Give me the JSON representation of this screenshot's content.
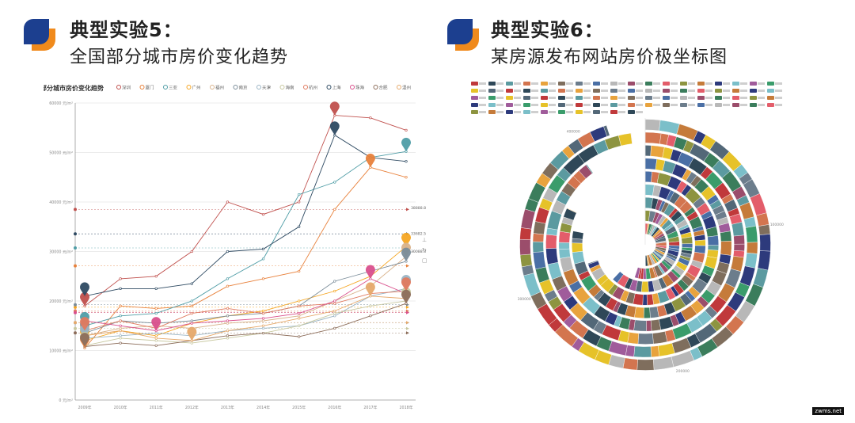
{
  "left": {
    "title": "典型实验5：",
    "subtitle": "全国部分城市房价变化趋势",
    "chart_title": "全国部分城市房价变化趋势"
  },
  "right": {
    "title": "典型实验6：",
    "subtitle": "某房源发布网站房价极坐标图"
  },
  "watermark": "zwms.net",
  "colors": {
    "logo_blue": "#1c3f8f",
    "logo_orange": "#f08a1c"
  },
  "chart_data": [
    {
      "type": "line",
      "title": "全国部分城市房价变化趋势",
      "categories": [
        "2009年",
        "2010年",
        "2011年",
        "2012年",
        "2013年",
        "2014年",
        "2015年",
        "2016年",
        "2017年",
        "2018年"
      ],
      "ylim": [
        0,
        60000
      ],
      "yticks": [
        "0 元/m²",
        "10000 元/m²",
        "20000 元/m²",
        "30000 元/m²",
        "40000 元/m²",
        "50000 元/m²",
        "60000 元/m²"
      ],
      "legend": [
        "深圳",
        "厦门",
        "三亚",
        "广州",
        "福州",
        "南京",
        "天津",
        "海南",
        "杭州",
        "上海",
        "珠海",
        "合肥",
        "温州"
      ],
      "series": [
        {
          "name": "深圳",
          "color": "#c0504d",
          "values": [
            19000,
            24500,
            25000,
            30000,
            40000,
            37500,
            40000,
            57500,
            57000,
            54500
          ]
        },
        {
          "name": "厦门",
          "color": "#e8813b",
          "values": [
            10500,
            19000,
            18500,
            19000,
            23000,
            24500,
            26000,
            38500,
            47000,
            45000
          ]
        },
        {
          "name": "三亚",
          "color": "#4f9da6",
          "values": [
            15000,
            17000,
            17500,
            20000,
            24500,
            28500,
            41500,
            44000,
            49000,
            50200
          ]
        },
        {
          "name": "广州",
          "color": "#f5a623",
          "values": [
            12000,
            14000,
            13000,
            15500,
            17000,
            18000,
            20000,
            22000,
            25000,
            31000
          ]
        },
        {
          "name": "福州",
          "color": "#d9b38c",
          "values": [
            13000,
            14500,
            15000,
            14500,
            15500,
            16000,
            17000,
            20000,
            23000,
            29000
          ]
        },
        {
          "name": "南京",
          "color": "#7a8c99",
          "values": [
            13500,
            16000,
            15500,
            16000,
            17000,
            17500,
            19000,
            24000,
            26000,
            28000
          ]
        },
        {
          "name": "天津",
          "color": "#9ab4c4",
          "values": [
            12500,
            13000,
            13500,
            13000,
            14000,
            14500,
            15000,
            17000,
            21000,
            22500
          ]
        },
        {
          "name": "海南",
          "color": "#c8c8a0",
          "values": [
            11000,
            12500,
            12000,
            11500,
            12500,
            13500,
            15000,
            17500,
            19000,
            20000
          ]
        },
        {
          "name": "杭州",
          "color": "#e07a5f",
          "values": [
            14000,
            16000,
            14500,
            17500,
            18500,
            17500,
            19000,
            19500,
            21500,
            22000
          ]
        },
        {
          "name": "上海",
          "color": "#2e4a62",
          "values": [
            21000,
            22500,
            22500,
            23500,
            30000,
            30500,
            35000,
            53500,
            49000,
            48200
          ]
        },
        {
          "name": "珠海",
          "color": "#d94f8c",
          "values": [
            16000,
            15000,
            14000,
            15500,
            16000,
            16500,
            17500,
            20000,
            24500,
            21500
          ]
        },
        {
          "name": "合肥",
          "color": "#8c6d5a",
          "values": [
            10800,
            11500,
            11000,
            12000,
            13000,
            13500,
            12800,
            14500,
            17000,
            19500
          ]
        },
        {
          "name": "温州",
          "color": "#e6a96b",
          "values": [
            13000,
            14000,
            12500,
            12000,
            14000,
            15000,
            16500,
            18000,
            21000,
            20500
          ]
        }
      ],
      "markers": [
        "上海",
        "深圳",
        "三亚",
        "厦门"
      ],
      "marklines": [
        "38888.8",
        "33682.5",
        "30088.3"
      ]
    },
    {
      "type": "polar-bar",
      "legend_colors": [
        "#c0393b",
        "#2f4858",
        "#5b9aa0",
        "#d3754f",
        "#e8a33d",
        "#7f6e5d",
        "#6c7d8c",
        "#4a6fa5",
        "#b8b8b8",
        "#9b4d6b",
        "#3b7d5c",
        "#e35d6a",
        "#8d9440",
        "#c57b3a",
        "#2d3a7c",
        "#7bbfc9",
        "#a05c9b",
        "#3a9c6b",
        "#e6c229",
        "#536878"
      ],
      "radial_ticks": [
        "100000",
        "200000",
        "300000",
        "400000"
      ]
    }
  ]
}
